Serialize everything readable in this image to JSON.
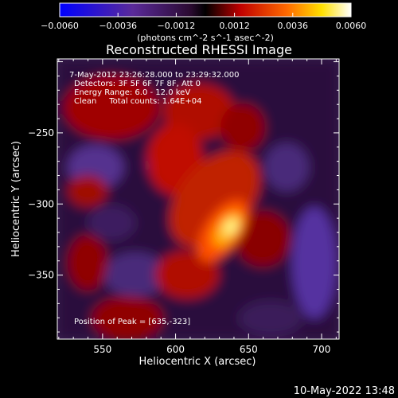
{
  "chart_data": {
    "type": "heatmap",
    "title": "Reconstructed RHESSI Image",
    "xlabel": "Heliocentric X (arcsec)",
    "ylabel": "Heliocentric Y (arcsec)",
    "xlim": [
      519,
      712
    ],
    "ylim": [
      -395,
      -198
    ],
    "xticks": [
      550,
      600,
      650,
      700
    ],
    "yticks": [
      -250,
      -300,
      -350
    ],
    "colorbar": {
      "range": [
        -0.006,
        0.006
      ],
      "ticks": [
        "-0.0060",
        "-0.0036",
        "-0.0012",
        "0.0012",
        "0.0036",
        "0.0060"
      ],
      "unit_label": "(photons cm^-2 s^-1 asec^-2)",
      "colors": [
        "#0000ff",
        "#5a2a9a",
        "#2a0a30",
        "#000000",
        "#c00000",
        "#ff6a00",
        "#ffe000",
        "#ffffff"
      ]
    },
    "peak": {
      "x": 635,
      "y": -323
    },
    "annotations": [
      "7-May-2012 23:26:28.000 to 23:29:32.000",
      "Detectors: 3F 5F 6F 7F 8F, Att 0",
      "Energy Range: 6.0 - 12.0 keV",
      "Clean     Total counts: 1.64E+04"
    ],
    "footer_text": "Position of Peak = [635,-323]"
  },
  "timestamp": "10-May-2022 13:48"
}
